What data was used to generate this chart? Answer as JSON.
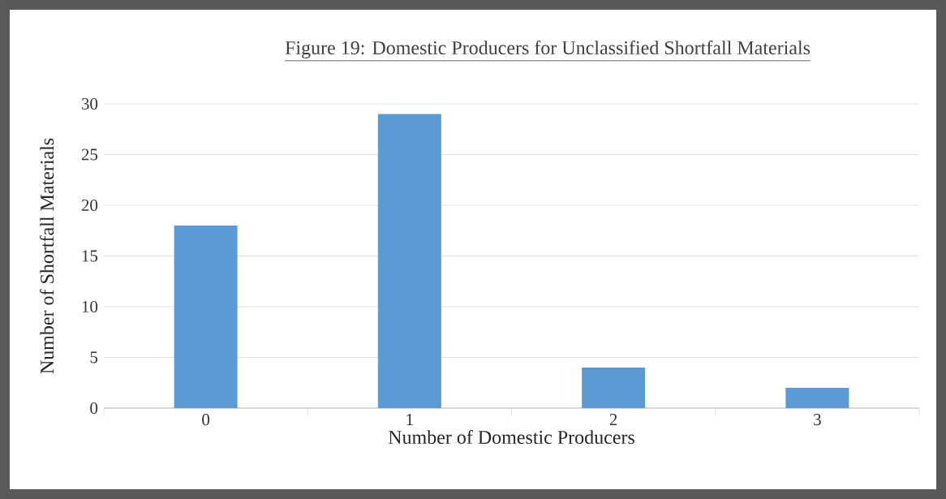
{
  "chart_data": {
    "type": "bar",
    "title": "Figure 19: Domestic Producers for Unclassified Shortfall Materials",
    "xlabel": "Number of Domestic Producers",
    "ylabel": "Number of Shortfall Materials",
    "categories": [
      "0",
      "1",
      "2",
      "3"
    ],
    "values": [
      18,
      29,
      4,
      2
    ],
    "color": "#5b9bd5",
    "ylim": [
      0,
      30
    ],
    "yticks": [
      0,
      5,
      10,
      15,
      20,
      25,
      30
    ],
    "grid": "y"
  }
}
